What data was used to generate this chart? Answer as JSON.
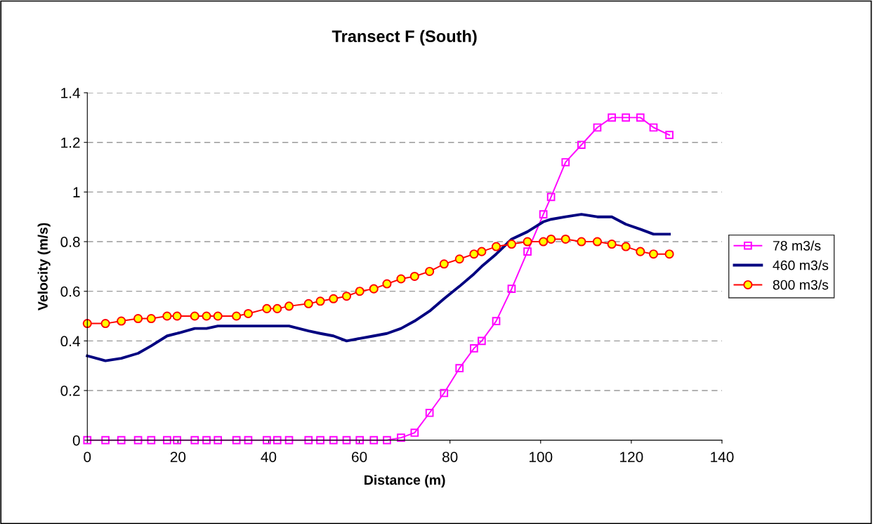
{
  "chart_data": {
    "type": "line",
    "title": "Transect F (South)",
    "xlabel": "Distance (m)",
    "ylabel": "Velocity (m/s)",
    "xlim": [
      0,
      140
    ],
    "xticks": [
      0,
      20,
      40,
      60,
      80,
      100,
      120,
      140
    ],
    "ylim": [
      0,
      1.4
    ],
    "yticks": [
      0,
      0.2,
      0.4,
      0.6,
      0.8,
      1,
      1.2,
      1.4
    ],
    "grid": "y",
    "legend": "right",
    "x": [
      0,
      4,
      7.5,
      11.2,
      14.1,
      17.6,
      19.8,
      23.7,
      26.3,
      28.8,
      32.9,
      35.5,
      39.6,
      41.9,
      44.5,
      48.8,
      51.4,
      54.3,
      57.2,
      60.1,
      63.2,
      66.1,
      69.2,
      72.2,
      75.5,
      78.7,
      82.1,
      85.3,
      87.0,
      90.2,
      93.6,
      97.1,
      100.6,
      102.3,
      105.5,
      109.0,
      112.5,
      115.7,
      118.8,
      122.0,
      124.9,
      128.4
    ],
    "series": [
      {
        "name": "78 m3/s",
        "color": "#ff00ff",
        "marker": "square",
        "values": [
          0,
          0,
          0,
          0,
          0,
          0,
          0,
          0,
          0,
          0,
          0,
          0,
          0,
          0,
          0,
          0,
          0,
          0,
          0,
          0,
          0,
          0,
          0.01,
          0.03,
          0.11,
          0.19,
          0.29,
          0.37,
          0.4,
          0.48,
          0.61,
          0.76,
          0.91,
          0.98,
          1.12,
          1.19,
          1.26,
          1.3,
          1.3,
          1.3,
          1.26,
          1.23
        ]
      },
      {
        "name": "460 m3/s",
        "color": "#000080",
        "marker": "none",
        "values": [
          0.34,
          0.32,
          0.33,
          0.35,
          0.38,
          0.42,
          0.43,
          0.45,
          0.45,
          0.46,
          0.46,
          0.46,
          0.46,
          0.46,
          0.46,
          0.44,
          0.43,
          0.42,
          0.4,
          0.41,
          0.42,
          0.43,
          0.45,
          0.48,
          0.52,
          0.57,
          0.62,
          0.67,
          0.7,
          0.75,
          0.81,
          0.84,
          0.88,
          0.89,
          0.9,
          0.91,
          0.9,
          0.9,
          0.87,
          0.85,
          0.83,
          0.83
        ]
      },
      {
        "name": "800 m3/s",
        "color": "#ff0000",
        "marker": "circle",
        "values": [
          0.47,
          0.47,
          0.48,
          0.49,
          0.49,
          0.5,
          0.5,
          0.5,
          0.5,
          0.5,
          0.5,
          0.51,
          0.53,
          0.53,
          0.54,
          0.55,
          0.56,
          0.57,
          0.58,
          0.6,
          0.61,
          0.63,
          0.65,
          0.66,
          0.68,
          0.71,
          0.73,
          0.75,
          0.76,
          0.78,
          0.79,
          0.8,
          0.8,
          0.81,
          0.81,
          0.8,
          0.8,
          0.79,
          0.78,
          0.76,
          0.75,
          0.75
        ]
      }
    ]
  }
}
